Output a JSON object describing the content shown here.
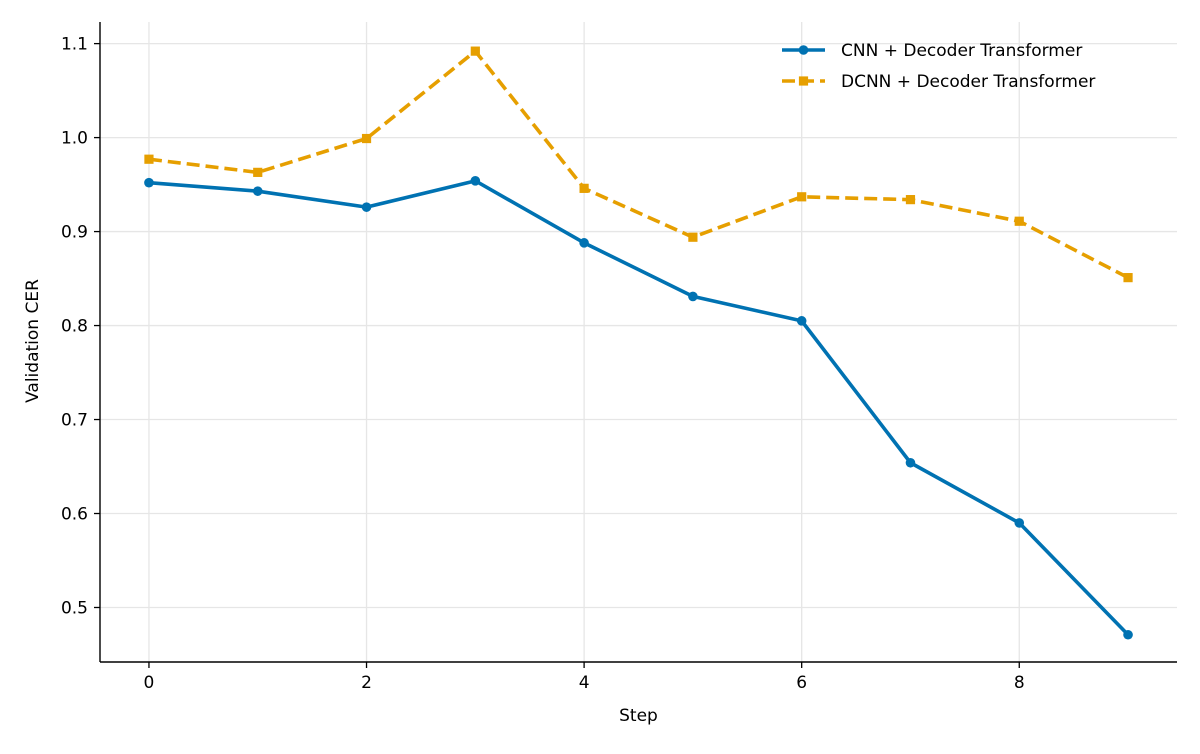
{
  "chart_data": {
    "type": "line",
    "title": "",
    "xlabel": "Step",
    "ylabel": "Validation CER",
    "xlim": [
      -0.45,
      9.45
    ],
    "ylim": [
      0.442,
      1.123
    ],
    "x_ticks": [
      0,
      2,
      4,
      6,
      8
    ],
    "y_ticks": [
      0.5,
      0.6,
      0.7,
      0.8,
      0.9,
      1.0,
      1.1
    ],
    "x_tick_labels": [
      "0",
      "2",
      "4",
      "6",
      "8"
    ],
    "y_tick_labels": [
      "0.5",
      "0.6",
      "0.7",
      "0.8",
      "0.9",
      "1.0",
      "1.1"
    ],
    "grid": true,
    "legend_position": "top-right",
    "x": [
      0,
      1,
      2,
      3,
      4,
      5,
      6,
      7,
      8,
      9
    ],
    "series": [
      {
        "name": "CNN + Decoder Transformer",
        "values": [
          0.952,
          0.943,
          0.926,
          0.954,
          0.888,
          0.831,
          0.805,
          0.654,
          0.59,
          0.471
        ],
        "color": "#0072B2",
        "marker": "circle",
        "line_style": "solid"
      },
      {
        "name": "DCNN + Decoder Transformer",
        "values": [
          0.977,
          0.963,
          0.999,
          1.092,
          0.946,
          0.894,
          0.937,
          0.934,
          0.911,
          0.851
        ],
        "color": "#E69F00",
        "marker": "square",
        "line_style": "dashed"
      }
    ]
  }
}
